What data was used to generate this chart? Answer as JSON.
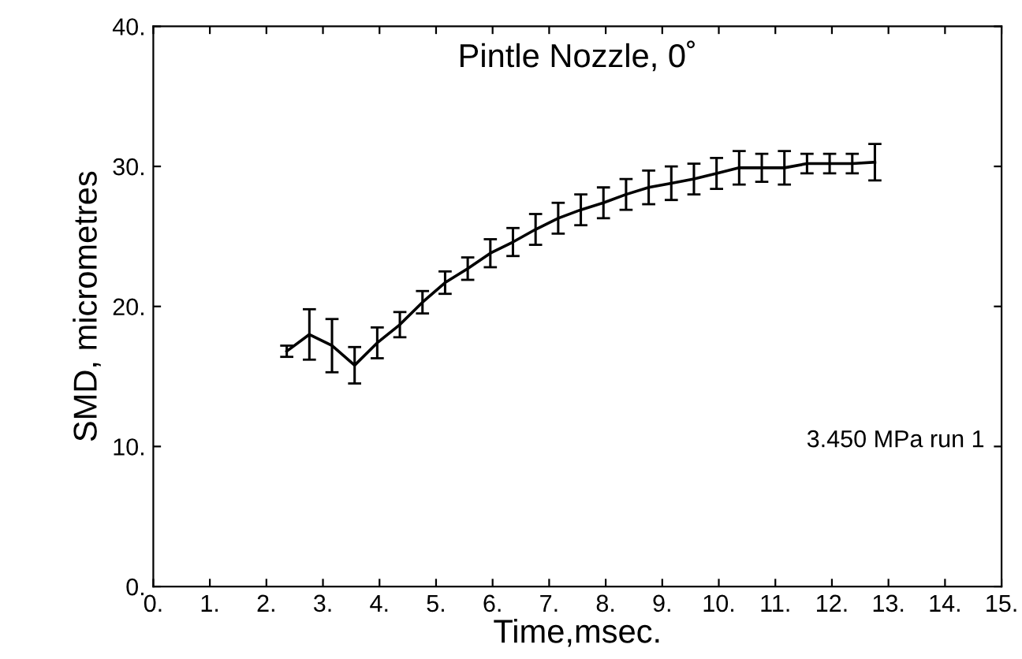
{
  "chart_data": {
    "type": "line",
    "title": "Pintle Nozzle, 0˚",
    "xlabel": "Time,msec.",
    "ylabel": "SMD, micrometres",
    "x": [
      2.36,
      2.76,
      3.16,
      3.56,
      3.96,
      4.36,
      4.76,
      5.16,
      5.56,
      5.96,
      6.36,
      6.76,
      7.16,
      7.56,
      7.96,
      8.36,
      8.76,
      9.16,
      9.56,
      9.96,
      10.36,
      10.76,
      11.16,
      11.56,
      11.96,
      12.36,
      12.76
    ],
    "series": [
      {
        "color": "#000000",
        "values": [
          16.8,
          18.0,
          17.2,
          15.8,
          17.4,
          18.7,
          20.3,
          21.7,
          22.7,
          23.8,
          24.6,
          25.5,
          26.3,
          26.9,
          27.4,
          28.0,
          28.5,
          28.8,
          29.1,
          29.5,
          29.9,
          29.9,
          29.9,
          30.2,
          30.2,
          30.2,
          30.3
        ],
        "errors": [
          0.4,
          1.8,
          1.9,
          1.3,
          1.1,
          0.9,
          0.8,
          0.8,
          0.8,
          1.0,
          1.0,
          1.1,
          1.1,
          1.1,
          1.1,
          1.1,
          1.2,
          1.2,
          1.1,
          1.1,
          1.2,
          1.0,
          1.2,
          0.7,
          0.7,
          0.7,
          1.3
        ]
      }
    ],
    "annotations": [
      "3.450 MPa run 1"
    ],
    "xlim": [
      0,
      15
    ],
    "ylim": [
      0,
      40
    ],
    "xticks": [
      {
        "value": 0,
        "label": "0."
      },
      {
        "value": 1,
        "label": "1."
      },
      {
        "value": 2,
        "label": "2."
      },
      {
        "value": 3,
        "label": "3."
      },
      {
        "value": 4,
        "label": "4."
      },
      {
        "value": 5,
        "label": "5."
      },
      {
        "value": 6,
        "label": "6."
      },
      {
        "value": 7,
        "label": "7."
      },
      {
        "value": 8,
        "label": "8."
      },
      {
        "value": 9,
        "label": "9."
      },
      {
        "value": 10,
        "label": "10."
      },
      {
        "value": 11,
        "label": "11."
      },
      {
        "value": 12,
        "label": "12."
      },
      {
        "value": 13,
        "label": "13."
      },
      {
        "value": 14,
        "label": "14."
      },
      {
        "value": 15,
        "label": "15."
      }
    ],
    "yticks": [
      {
        "value": 0,
        "label": "0."
      },
      {
        "value": 10,
        "label": "10."
      },
      {
        "value": 20,
        "label": "20."
      },
      {
        "value": 30,
        "label": "30."
      },
      {
        "value": 40,
        "label": "40."
      }
    ],
    "grid": false,
    "legend": false,
    "marker": "none",
    "line_style": "solid"
  }
}
